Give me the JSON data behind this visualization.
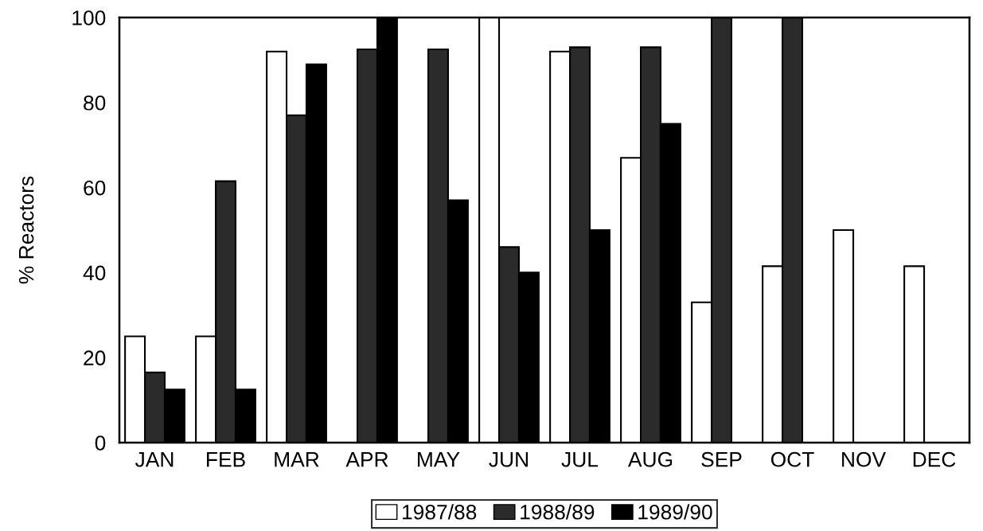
{
  "chart_data": {
    "type": "bar",
    "ylabel": "% Reactors",
    "categories": [
      "JAN",
      "FEB",
      "MAR",
      "APR",
      "MAY",
      "JUN",
      "JUL",
      "AUG",
      "SEP",
      "OCT",
      "NOV",
      "DEC"
    ],
    "series": [
      {
        "name": "1987/88",
        "color": "#ffffff",
        "values": [
          25,
          25,
          92,
          null,
          null,
          100,
          92,
          67,
          33,
          41.5,
          50,
          41.5
        ]
      },
      {
        "name": "1988/89",
        "color": "#2b2b2b",
        "values": [
          16.5,
          61.5,
          77,
          92.5,
          92.5,
          46,
          93,
          93,
          100,
          100,
          null,
          null
        ]
      },
      {
        "name": "1989/90",
        "color": "#000000",
        "values": [
          12.5,
          12.5,
          89,
          100,
          57,
          40,
          50,
          75,
          null,
          null,
          null,
          null
        ]
      }
    ],
    "ylim": [
      0,
      100
    ],
    "yticks": [
      0,
      20,
      40,
      60,
      80,
      100
    ],
    "grid": false,
    "legend": "bottom"
  }
}
